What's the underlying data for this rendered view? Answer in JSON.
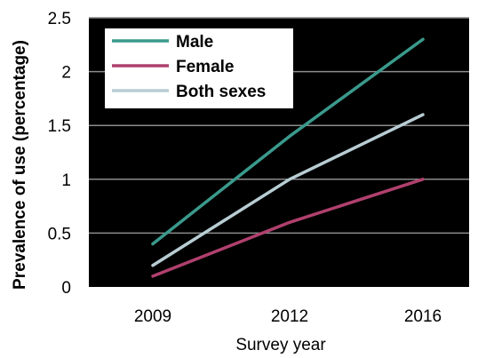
{
  "chart_data": {
    "type": "line",
    "categories": [
      "2009",
      "2012",
      "2016"
    ],
    "series": [
      {
        "name": "Male",
        "values": [
          0.4,
          1.4,
          2.3
        ],
        "color": "#3a9a8c"
      },
      {
        "name": "Female",
        "values": [
          0.1,
          0.6,
          1.0
        ],
        "color": "#b0406e"
      },
      {
        "name": "Both sexes",
        "values": [
          0.2,
          1.0,
          1.6
        ],
        "color": "#b8cdd3"
      }
    ],
    "xlabel": "Survey year",
    "ylabel": "Prevalence of use (percentage)",
    "ylim": [
      0,
      2.5
    ],
    "yticks": [
      "0",
      "0.5",
      "1",
      "1.5",
      "2",
      "2.5"
    ],
    "grid": true,
    "plot_background": "#000000",
    "gridline_color": "#8c8c8c",
    "legend_background": "#ffffff",
    "legend_position": "top-left"
  }
}
